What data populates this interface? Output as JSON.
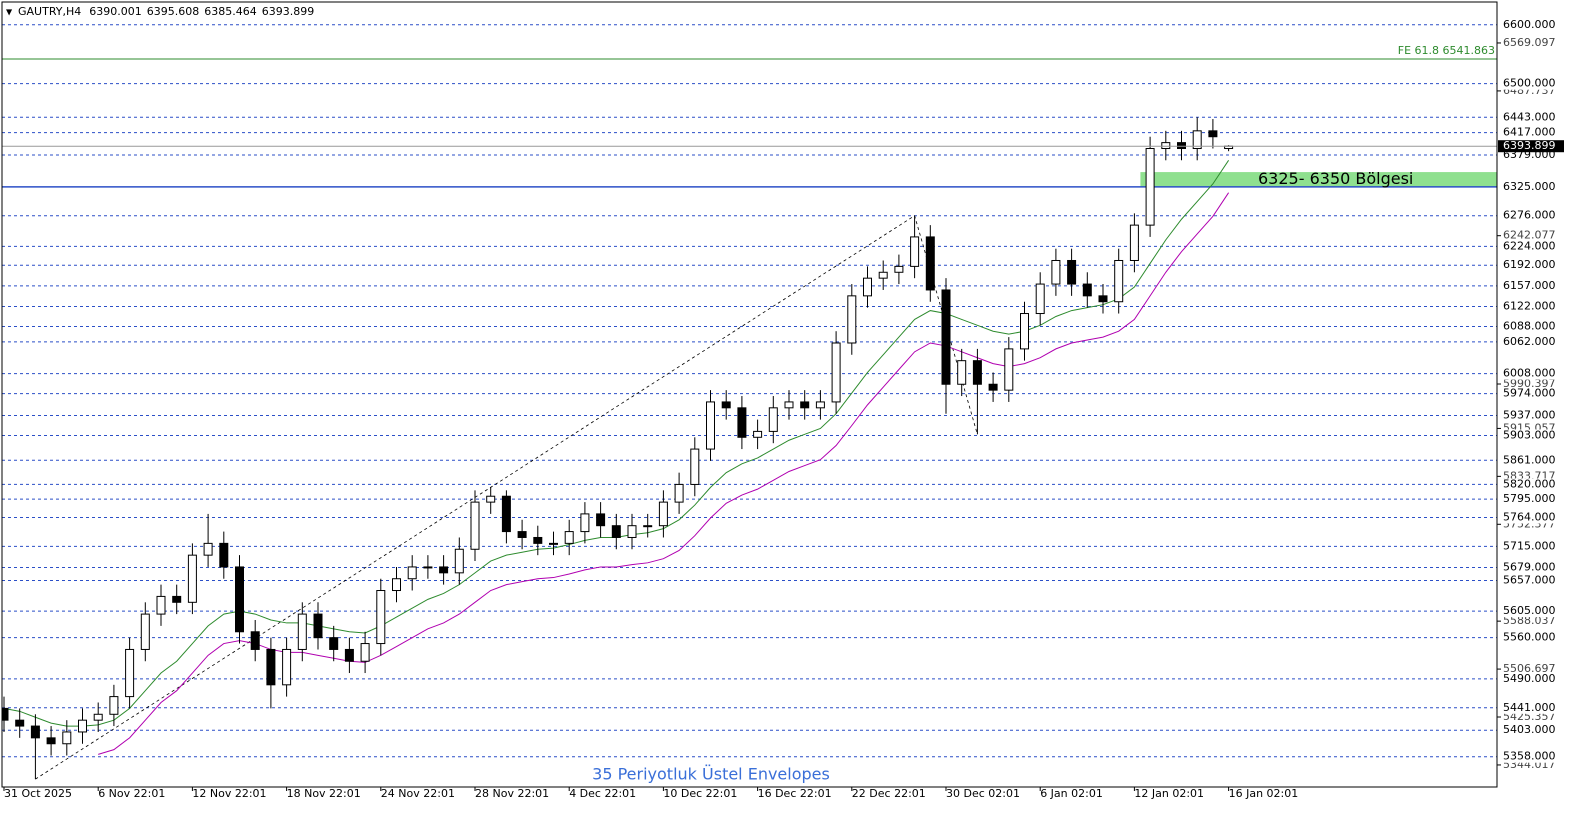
{
  "chart_data": {
    "type": "candlestick",
    "symbol": "GAUTRY,H4",
    "indicator_label": "35 Periyotluk Üstel Envelopes",
    "categories": [
      "31 Oct 2025",
      null,
      null,
      null,
      null,
      null,
      "6 Nov 22:01",
      null,
      null,
      null,
      null,
      null,
      "12 Nov 22:01",
      null,
      null,
      null,
      null,
      null,
      "18 Nov 22:01",
      null,
      null,
      null,
      null,
      null,
      "24 Nov 22:01",
      null,
      null,
      null,
      null,
      null,
      "28 Nov 22:01",
      null,
      null,
      null,
      null,
      null,
      "4 Dec 22:01",
      null,
      null,
      null,
      null,
      null,
      "10 Dec 22:01",
      null,
      null,
      null,
      null,
      null,
      "16 Dec 22:01",
      null,
      null,
      null,
      null,
      null,
      "22 Dec 22:01",
      null,
      null,
      null,
      null,
      null,
      "30 Dec 02:01",
      null,
      null,
      null,
      null,
      null,
      "6 Jan 02:01",
      null,
      null,
      null,
      null,
      null,
      "12 Jan 02:01",
      null,
      null,
      null,
      null,
      null,
      "16 Jan 02:01"
    ],
    "open": [
      5440,
      5420,
      5410,
      5390,
      5380,
      5400,
      5420,
      5430,
      5460,
      5540,
      5600,
      5630,
      5620,
      5700,
      5720,
      5680,
      5570,
      5540,
      5480,
      5540,
      5600,
      5560,
      5540,
      5520,
      5550,
      5640,
      5660,
      5680,
      5680,
      5670,
      5710,
      5790,
      5800,
      5740,
      5730,
      5720,
      5720,
      5740,
      5770,
      5750,
      5730,
      5750,
      5750,
      5790,
      5820,
      5880,
      5960,
      5950,
      5900,
      5910,
      5950,
      5960,
      5950,
      5960,
      6060,
      6140,
      6170,
      6180,
      6190,
      6240,
      6150,
      5990,
      6030,
      5990,
      5980,
      6050,
      6110,
      6160,
      6200,
      6160,
      6140,
      6130,
      6200,
      6260,
      6390,
      6400,
      6390,
      6420,
      6390.001
    ],
    "high": [
      5460,
      5440,
      5430,
      5410,
      5420,
      5440,
      5450,
      5480,
      5560,
      5620,
      5650,
      5650,
      5720,
      5770,
      5740,
      5700,
      5590,
      5560,
      5560,
      5620,
      5620,
      5580,
      5560,
      5570,
      5660,
      5680,
      5700,
      5700,
      5700,
      5730,
      5810,
      5815,
      5810,
      5760,
      5750,
      5740,
      5760,
      5790,
      5790,
      5770,
      5770,
      5770,
      5810,
      5840,
      5900,
      5980,
      5980,
      5970,
      5930,
      5970,
      5980,
      5980,
      5980,
      6080,
      6160,
      6190,
      6200,
      6210,
      6276,
      6260,
      6170,
      6050,
      6050,
      6010,
      6070,
      6130,
      6180,
      6220,
      6220,
      6180,
      6160,
      6220,
      6280,
      6410,
      6420,
      6420,
      6443,
      6440,
      6395.608
    ],
    "low": [
      5400,
      5390,
      5320,
      5360,
      5360,
      5380,
      5400,
      5410,
      5440,
      5520,
      5580,
      5600,
      5600,
      5680,
      5660,
      5550,
      5520,
      5440,
      5460,
      5520,
      5540,
      5520,
      5500,
      5500,
      5530,
      5620,
      5640,
      5660,
      5650,
      5650,
      5690,
      5770,
      5720,
      5710,
      5700,
      5700,
      5700,
      5720,
      5730,
      5710,
      5710,
      5730,
      5730,
      5770,
      5800,
      5860,
      5930,
      5880,
      5880,
      5890,
      5930,
      5930,
      5930,
      5940,
      6040,
      6120,
      6150,
      6160,
      6170,
      6130,
      5940,
      5970,
      5905,
      5960,
      5960,
      6030,
      6090,
      6140,
      6140,
      6120,
      6110,
      6110,
      6180,
      6240,
      6370,
      6370,
      6370,
      6390,
      6385.464
    ],
    "close": [
      5420,
      5410,
      5390,
      5380,
      5400,
      5420,
      5430,
      5460,
      5540,
      5600,
      5630,
      5620,
      5700,
      5720,
      5680,
      5570,
      5540,
      5480,
      5540,
      5600,
      5560,
      5540,
      5520,
      5550,
      5640,
      5660,
      5680,
      5680,
      5670,
      5710,
      5790,
      5800,
      5740,
      5730,
      5720,
      5720,
      5740,
      5770,
      5750,
      5730,
      5750,
      5750,
      5790,
      5820,
      5880,
      5960,
      5950,
      5900,
      5910,
      5950,
      5960,
      5950,
      5960,
      6060,
      6140,
      6170,
      6180,
      6190,
      6240,
      6150,
      5990,
      6030,
      5990,
      5980,
      6050,
      6110,
      6160,
      6200,
      6160,
      6140,
      6130,
      6200,
      6260,
      6390,
      6400,
      6390,
      6420,
      6410,
      6393.899
    ],
    "up_color": "#ffffff",
    "down_color": "#000000",
    "envelopes": [
      {
        "color": "#2e8b2e",
        "values": [
          5440,
          5435,
          5425,
          5415,
          5410,
          5410,
          5412,
          5420,
          5440,
          5470,
          5500,
          5520,
          5550,
          5580,
          5600,
          5605,
          5600,
          5590,
          5585,
          5585,
          5580,
          5575,
          5570,
          5568,
          5580,
          5595,
          5610,
          5625,
          5635,
          5650,
          5670,
          5690,
          5700,
          5705,
          5710,
          5712,
          5718,
          5725,
          5730,
          5730,
          5735,
          5738,
          5745,
          5760,
          5785,
          5815,
          5840,
          5855,
          5865,
          5880,
          5895,
          5905,
          5915,
          5940,
          5975,
          6010,
          6040,
          6070,
          6100,
          6115,
          6110,
          6100,
          6090,
          6080,
          6075,
          6080,
          6090,
          6105,
          6115,
          6120,
          6125,
          6135,
          6155,
          6195,
          6235,
          6270,
          6300,
          6330,
          6370
        ]
      },
      {
        "color": "#b000b0",
        "values": [
          null,
          null,
          null,
          null,
          null,
          null,
          5362,
          5370,
          5390,
          5420,
          5450,
          5470,
          5500,
          5530,
          5550,
          5555,
          5550,
          5540,
          5535,
          5535,
          5530,
          5525,
          5520,
          5518,
          5530,
          5545,
          5560,
          5575,
          5585,
          5600,
          5620,
          5640,
          5650,
          5655,
          5660,
          5662,
          5668,
          5675,
          5680,
          5680,
          5684,
          5687,
          5694,
          5708,
          5733,
          5763,
          5788,
          5802,
          5812,
          5827,
          5842,
          5852,
          5862,
          5886,
          5920,
          5955,
          5985,
          6015,
          6045,
          6060,
          6055,
          6045,
          6035,
          6025,
          6020,
          6025,
          6035,
          6050,
          6060,
          6065,
          6070,
          6080,
          6100,
          6140,
          6180,
          6215,
          6245,
          6275,
          6315
        ]
      }
    ],
    "ylim": [
      5310,
      6642
    ],
    "yticks": [
      6569.097,
      6487.737,
      6242.077,
      5990.397,
      5915.057,
      5833.717,
      5752.377,
      5588.037,
      5506.697,
      5425.357,
      5344.017
    ],
    "levels": [
      {
        "value": 6600,
        "label": "6600.000"
      },
      {
        "value": 6500,
        "label": "6500.000"
      },
      {
        "value": 6443,
        "label": "6443.000"
      },
      {
        "value": 6417,
        "label": "6417.000"
      },
      {
        "value": 6379,
        "label": "6379.000"
      },
      {
        "value": 6325,
        "label": "6325.000",
        "style": "solid"
      },
      {
        "value": 6276,
        "label": "6276.000"
      },
      {
        "value": 6224,
        "label": "6224.000"
      },
      {
        "value": 6192,
        "label": "6192.000"
      },
      {
        "value": 6157,
        "label": "6157.000"
      },
      {
        "value": 6122,
        "label": "6122.000"
      },
      {
        "value": 6088,
        "label": "6088.000"
      },
      {
        "value": 6062,
        "label": "6062.000"
      },
      {
        "value": 6008,
        "label": "6008.000"
      },
      {
        "value": 5974,
        "label": "5974.000"
      },
      {
        "value": 5937,
        "label": "5937.000"
      },
      {
        "value": 5903,
        "label": "5903.000"
      },
      {
        "value": 5861,
        "label": "5861.000"
      },
      {
        "value": 5820,
        "label": "5820.000"
      },
      {
        "value": 5795,
        "label": "5795.000"
      },
      {
        "value": 5764,
        "label": "5764.000"
      },
      {
        "value": 5715,
        "label": "5715.000"
      },
      {
        "value": 5679,
        "label": "5679.000"
      },
      {
        "value": 5657,
        "label": "5657.000"
      },
      {
        "value": 5605,
        "label": "5605.000"
      },
      {
        "value": 5560,
        "label": "5560.000"
      },
      {
        "value": 5490,
        "label": "5490.000"
      },
      {
        "value": 5441,
        "label": "5441.000"
      },
      {
        "value": 5403,
        "label": "5403.000"
      },
      {
        "value": 5358,
        "label": "5358.000"
      }
    ],
    "level_color": "#2b4fc7",
    "fe_level": {
      "value": 6541.863,
      "label": "FE 61.8 6541.863",
      "color": "#2e8b2e"
    },
    "zone": {
      "low": 6325,
      "high": 6350,
      "label": "6325- 6350 Bölgesi",
      "color": "#8fe08f"
    }
  }
}
